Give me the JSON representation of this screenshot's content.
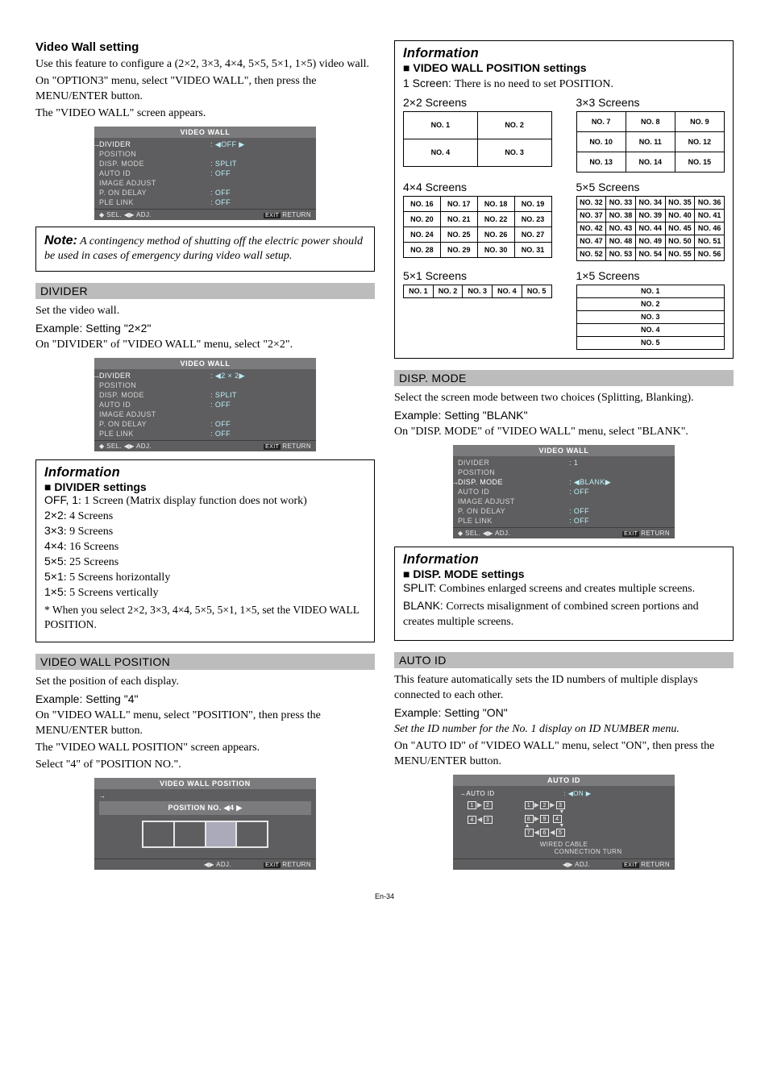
{
  "left": {
    "title": "Video Wall setting",
    "intro1": "Use this feature to configure a (2×2, 3×3, 4×4, 5×5, 5×1, 1×5) video wall.",
    "intro2": "On \"OPTION3\" menu, select \"VIDEO WALL\", then press the MENU/ENTER button.",
    "intro3": "The \"VIDEO WALL\" screen appears.",
    "note_label": "Note:",
    "note_text": " A contingency method of shutting off the electric power should be used in cases of emergency during video wall setup.",
    "divider_head": "DIVIDER",
    "divider_p1": "Set the video wall.",
    "divider_ex": "Example: Setting \"2×2\"",
    "divider_p2": "On \"DIVIDER\" of \"VIDEO WALL\" menu, select \"2×2\".",
    "info1_head": "Information",
    "info1_sub": "DIVIDER settings",
    "info1_items": [
      {
        "k": "OFF, 1",
        "v": ": 1 Screen (Matrix display function does not work)"
      },
      {
        "k": "2×2",
        "v": ": 4 Screens"
      },
      {
        "k": "3×3",
        "v": ": 9 Screens"
      },
      {
        "k": "4×4",
        "v": ": 16 Screens"
      },
      {
        "k": "5×5",
        "v": ": 25 Screens"
      },
      {
        "k": "5×1",
        "v": ": 5 Screens horizontally"
      },
      {
        "k": "1×5",
        "v": ": 5 Screens vertically"
      }
    ],
    "info1_foot": "* When you select 2×2, 3×3, 4×4, 5×5, 5×1, 1×5, set the VIDEO WALL POSITION.",
    "vwp_head": "VIDEO WALL POSITION",
    "vwp_p1": "Set the position of each display.",
    "vwp_ex": "Example: Setting \"4\"",
    "vwp_p2": "On \"VIDEO WALL\" menu, select \"POSITION\", then press the MENU/ENTER button.",
    "vwp_p3": "The \"VIDEO WALL POSITION\" screen appears.",
    "vwp_p4": "Select \"4\" of \"POSITION NO.\"."
  },
  "right": {
    "info_head": "Information",
    "info_sub": "VIDEO WALL POSITION settings",
    "one_screen": "1 Screen: There is no need to set POSITION.",
    "labels": {
      "s22": "2×2 Screens",
      "s33": "3×3 Screens",
      "s44": "4×4 Screens",
      "s55": "5×5 Screens",
      "s51": "5×1 Screens",
      "s15": "1×5 Screens"
    },
    "g22": [
      [
        "NO. 1",
        "NO. 2"
      ],
      [
        "NO. 4",
        "NO. 3"
      ]
    ],
    "g33": [
      [
        "NO. 7",
        "NO. 8",
        "NO. 9"
      ],
      [
        "NO. 10",
        "NO. 11",
        "NO. 12"
      ],
      [
        "NO. 13",
        "NO. 14",
        "NO. 15"
      ]
    ],
    "g44": [
      [
        "NO. 16",
        "NO. 17",
        "NO. 18",
        "NO. 19"
      ],
      [
        "NO. 20",
        "NO. 21",
        "NO. 22",
        "NO. 23"
      ],
      [
        "NO. 24",
        "NO. 25",
        "NO. 26",
        "NO. 27"
      ],
      [
        "NO. 28",
        "NO. 29",
        "NO. 30",
        "NO. 31"
      ]
    ],
    "g55": [
      [
        "NO. 32",
        "NO. 33",
        "NO. 34",
        "NO. 35",
        "NO. 36"
      ],
      [
        "NO. 37",
        "NO. 38",
        "NO. 39",
        "NO. 40",
        "NO. 41"
      ],
      [
        "NO. 42",
        "NO. 43",
        "NO. 44",
        "NO. 45",
        "NO. 46"
      ],
      [
        "NO. 47",
        "NO. 48",
        "NO. 49",
        "NO. 50",
        "NO. 51"
      ],
      [
        "NO. 52",
        "NO. 53",
        "NO. 54",
        "NO. 55",
        "NO. 56"
      ]
    ],
    "g51": [
      [
        "NO. 1",
        "NO. 2",
        "NO. 3",
        "NO. 4",
        "NO. 5"
      ]
    ],
    "g15": [
      [
        "NO. 1"
      ],
      [
        "NO. 2"
      ],
      [
        "NO. 3"
      ],
      [
        "NO. 4"
      ],
      [
        "NO. 5"
      ]
    ],
    "disp_head": "DISP. MODE",
    "disp_p1": "Select the screen mode between two choices (Splitting, Blanking).",
    "disp_ex": "Example: Setting \"BLANK\"",
    "disp_p2": "On \"DISP. MODE\" of \"VIDEO WALL\" menu, select \"BLANK\".",
    "info2_head": "Information",
    "info2_sub": "DISP. MODE settings",
    "info2_p1a": "SPLIT:",
    "info2_p1b": " Combines enlarged screens and creates multiple screens.",
    "info2_p2a": "BLANK:",
    "info2_p2b": " Corrects misalignment of combined screen portions and creates multiple screens.",
    "auto_head": "AUTO ID",
    "auto_p1": "This feature automatically sets the ID numbers of multiple displays connected to each other.",
    "auto_ex": "Example: Setting \"ON\"",
    "auto_p2": "Set the ID number for the No. 1 display on ID NUMBER menu.",
    "auto_p3": "On \"AUTO ID\" of \"VIDEO WALL\" menu, select \"ON\", then press the MENU/ENTER button."
  },
  "osd1": {
    "title": "VIDEO WALL",
    "rows": [
      [
        "DIVIDER",
        ":  ◀OFF ▶",
        true,
        true
      ],
      [
        "POSITION",
        "",
        false,
        false
      ],
      [
        "DISP. MODE",
        ":   SPLIT",
        false,
        true
      ],
      [
        "AUTO ID",
        ":   OFF",
        false,
        true
      ],
      [
        "IMAGE ADJUST",
        "",
        false,
        false
      ],
      [
        "P. ON DELAY",
        ":   OFF",
        false,
        true
      ],
      [
        "PLE LINK",
        ":   OFF",
        false,
        true
      ]
    ],
    "foot_l": "◆ SEL.          ◀▶ ADJ.",
    "foot_r": "EXIT RETURN"
  },
  "osd2": {
    "title": "VIDEO WALL",
    "rows": [
      [
        "DIVIDER",
        ":  ◀2 × 2▶",
        true,
        true
      ],
      [
        "POSITION",
        "",
        false,
        false
      ],
      [
        "DISP. MODE",
        ":   SPLIT",
        false,
        true
      ],
      [
        "AUTO ID",
        ":   OFF",
        false,
        true
      ],
      [
        "IMAGE ADJUST",
        "",
        false,
        false
      ],
      [
        "P. ON DELAY",
        ":   OFF",
        false,
        true
      ],
      [
        "PLE LINK",
        ":   OFF",
        false,
        true
      ]
    ],
    "foot_l": "◆ SEL.          ◀▶ ADJ.",
    "foot_r": "EXIT RETURN"
  },
  "osd3": {
    "title": "VIDEO WALL POSITION",
    "pos": "POSITION NO. ◀4 ▶",
    "foot_l": "◀▶ ADJ.",
    "foot_r": "EXIT RETURN"
  },
  "osd4": {
    "title": "VIDEO WALL",
    "rows": [
      [
        "DIVIDER",
        ":   1",
        false,
        true
      ],
      [
        "POSITION",
        "",
        false,
        false
      ],
      [
        "DISP. MODE",
        ":  ◀BLANK▶",
        true,
        true
      ],
      [
        "AUTO ID",
        ":   OFF",
        false,
        true
      ],
      [
        "IMAGE ADJUST",
        "",
        false,
        false
      ],
      [
        "P. ON DELAY",
        ":   OFF",
        false,
        true
      ],
      [
        "PLE LINK",
        ":   OFF",
        false,
        true
      ]
    ],
    "foot_l": "◆ SEL.          ◀▶ ADJ.",
    "foot_r": "EXIT RETURN"
  },
  "osd5": {
    "title": "AUTO ID",
    "auto_label": "AUTO ID",
    "auto_val": ":  ◀ON  ▶",
    "wired": "WIRED CABLE",
    "conn": "CONNECTION TURN",
    "foot_l": "◀▶ ADJ.",
    "foot_r": "EXIT RETURN"
  },
  "page": "En-34"
}
